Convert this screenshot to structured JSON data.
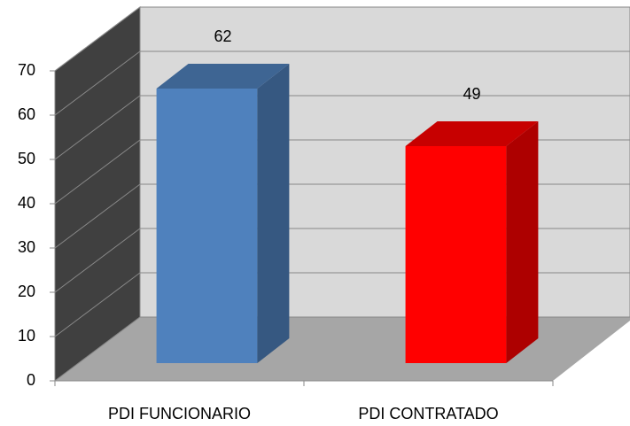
{
  "chart_data": {
    "type": "bar3d",
    "categories": [
      "PDI FUNCIONARIO",
      "PDI CONTRATADO"
    ],
    "values": [
      62,
      49
    ],
    "colors": [
      "#4f81bd",
      "#ff0000"
    ],
    "ylim": [
      0,
      70
    ],
    "yticks": [
      0,
      10,
      20,
      30,
      40,
      50,
      60,
      70
    ],
    "grid": true
  }
}
